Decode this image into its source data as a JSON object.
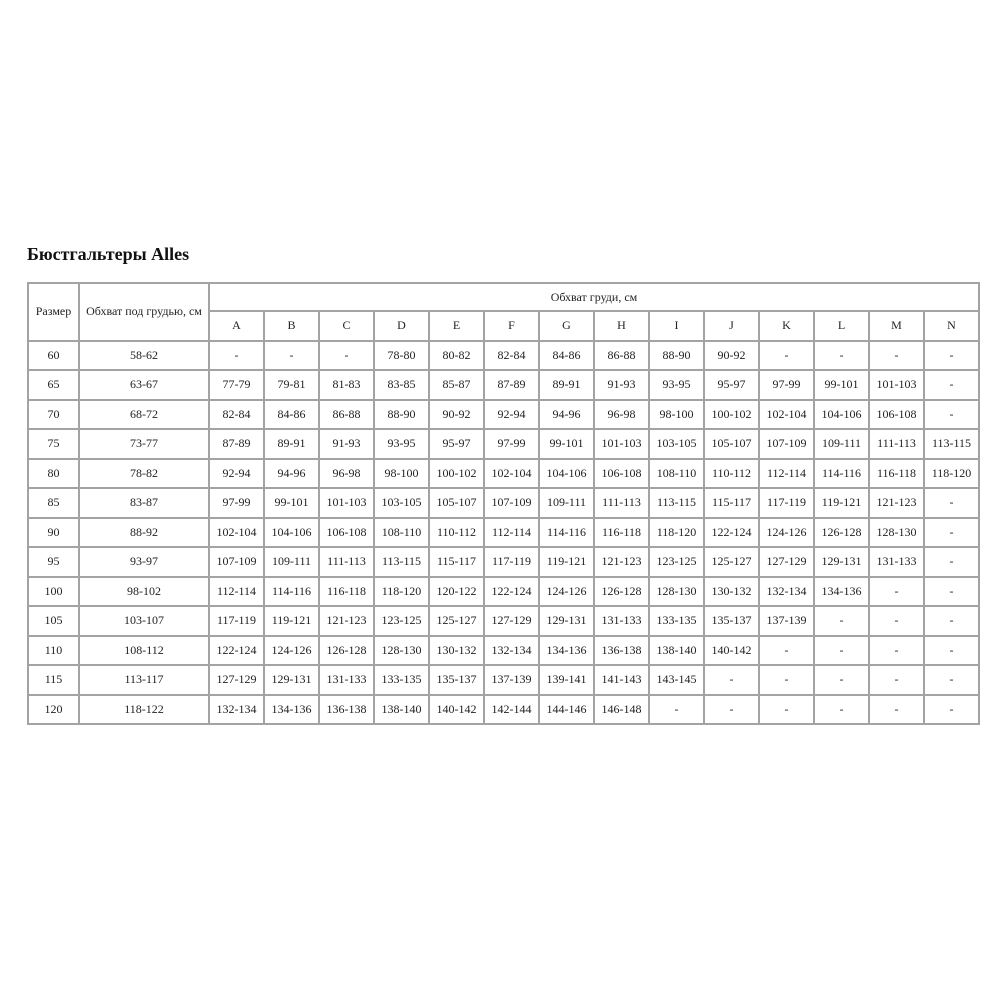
{
  "title": "Бюстгальтеры Alles",
  "headers": {
    "size": "Размер",
    "underbust": "Обхват под грудью, см",
    "bust": "Обхват груди, см",
    "cups": [
      "A",
      "B",
      "C",
      "D",
      "E",
      "F",
      "G",
      "H",
      "I",
      "J",
      "K",
      "L",
      "M",
      "N"
    ]
  },
  "rows": [
    [
      "60",
      "58-62",
      "-",
      "-",
      "-",
      "78-80",
      "80-82",
      "82-84",
      "84-86",
      "86-88",
      "88-90",
      "90-92",
      "-",
      "-",
      "-",
      "-"
    ],
    [
      "65",
      "63-67",
      "77-79",
      "79-81",
      "81-83",
      "83-85",
      "85-87",
      "87-89",
      "89-91",
      "91-93",
      "93-95",
      "95-97",
      "97-99",
      "99-101",
      "101-103",
      "-"
    ],
    [
      "70",
      "68-72",
      "82-84",
      "84-86",
      "86-88",
      "88-90",
      "90-92",
      "92-94",
      "94-96",
      "96-98",
      "98-100",
      "100-102",
      "102-104",
      "104-106",
      "106-108",
      "-"
    ],
    [
      "75",
      "73-77",
      "87-89",
      "89-91",
      "91-93",
      "93-95",
      "95-97",
      "97-99",
      "99-101",
      "101-103",
      "103-105",
      "105-107",
      "107-109",
      "109-111",
      "111-113",
      "113-115"
    ],
    [
      "80",
      "78-82",
      "92-94",
      "94-96",
      "96-98",
      "98-100",
      "100-102",
      "102-104",
      "104-106",
      "106-108",
      "108-110",
      "110-112",
      "112-114",
      "114-116",
      "116-118",
      "118-120"
    ],
    [
      "85",
      "83-87",
      "97-99",
      "99-101",
      "101-103",
      "103-105",
      "105-107",
      "107-109",
      "109-111",
      "111-113",
      "113-115",
      "115-117",
      "117-119",
      "119-121",
      "121-123",
      "-"
    ],
    [
      "90",
      "88-92",
      "102-104",
      "104-106",
      "106-108",
      "108-110",
      "110-112",
      "112-114",
      "114-116",
      "116-118",
      "118-120",
      "122-124",
      "124-126",
      "126-128",
      "128-130",
      "-"
    ],
    [
      "95",
      "93-97",
      "107-109",
      "109-111",
      "111-113",
      "113-115",
      "115-117",
      "117-119",
      "119-121",
      "121-123",
      "123-125",
      "125-127",
      "127-129",
      "129-131",
      "131-133",
      "-"
    ],
    [
      "100",
      "98-102",
      "112-114",
      "114-116",
      "116-118",
      "118-120",
      "120-122",
      "122-124",
      "124-126",
      "126-128",
      "128-130",
      "130-132",
      "132-134",
      "134-136",
      "-",
      "-"
    ],
    [
      "105",
      "103-107",
      "117-119",
      "119-121",
      "121-123",
      "123-125",
      "125-127",
      "127-129",
      "129-131",
      "131-133",
      "133-135",
      "135-137",
      "137-139",
      "-",
      "-",
      "-"
    ],
    [
      "110",
      "108-112",
      "122-124",
      "124-126",
      "126-128",
      "128-130",
      "130-132",
      "132-134",
      "134-136",
      "136-138",
      "138-140",
      "140-142",
      "-",
      "-",
      "-",
      "-"
    ],
    [
      "115",
      "113-117",
      "127-129",
      "129-131",
      "131-133",
      "133-135",
      "135-137",
      "137-139",
      "139-141",
      "141-143",
      "143-145",
      "-",
      "-",
      "-",
      "-",
      "-"
    ],
    [
      "120",
      "118-122",
      "132-134",
      "134-136",
      "136-138",
      "138-140",
      "140-142",
      "142-144",
      "144-146",
      "146-148",
      "-",
      "-",
      "-",
      "-",
      "-",
      "-"
    ]
  ]
}
